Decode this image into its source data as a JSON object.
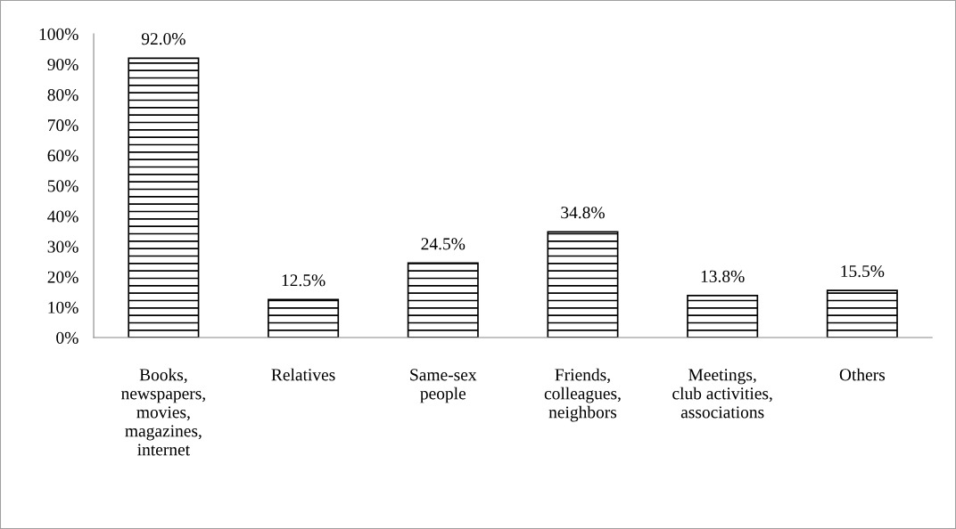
{
  "chart_data": {
    "type": "bar",
    "categories": [
      "Books,\nnewspapers,\nmovies,\nmagazines,\ninternet",
      "Relatives",
      "Same-sex\npeople",
      "Friends,\ncolleagues,\nneighbors",
      "Meetings,\nclub activities,\nassociations",
      "Others"
    ],
    "values": [
      92.0,
      12.5,
      24.5,
      34.8,
      13.8,
      15.5
    ],
    "value_labels": [
      "92.0%",
      "12.5%",
      "24.5%",
      "34.8%",
      "13.8%",
      "15.5%"
    ],
    "color": "#000000",
    "ylim": [
      0,
      100
    ],
    "yticks": [
      {
        "value": 0,
        "label": "0%"
      },
      {
        "value": 10,
        "label": "10%"
      },
      {
        "value": 20,
        "label": "20%"
      },
      {
        "value": 30,
        "label": "30%"
      },
      {
        "value": 40,
        "label": "40%"
      },
      {
        "value": 50,
        "label": "50%"
      },
      {
        "value": 60,
        "label": "60%"
      },
      {
        "value": 70,
        "label": "70%"
      },
      {
        "value": 80,
        "label": "80%"
      },
      {
        "value": 90,
        "label": "90%"
      },
      {
        "value": 100,
        "label": "100%"
      }
    ],
    "grid": false,
    "legend": false
  }
}
